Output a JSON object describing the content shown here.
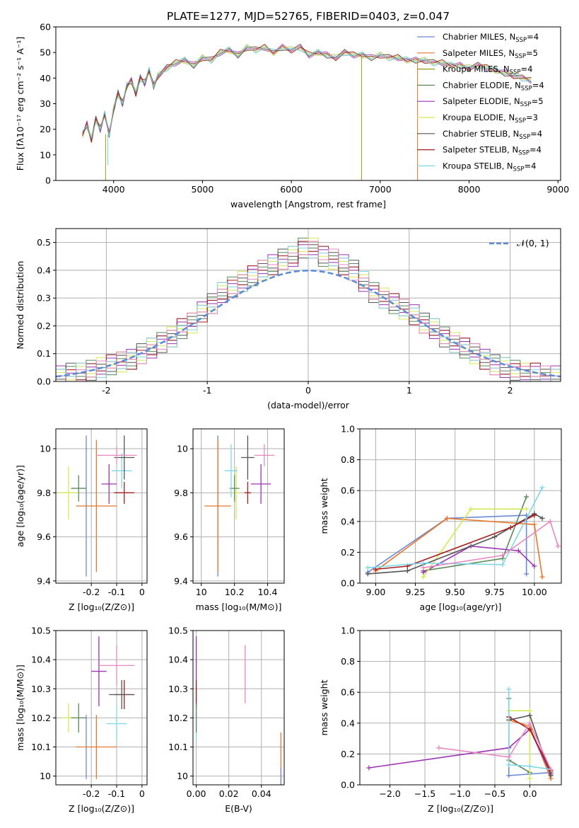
{
  "figure": {
    "title": "PLATE=1277, MJD=52765, FIBERID=0403, z=0.047"
  },
  "legend": {
    "series": [
      {
        "label": "Chabrier MILES, N",
        "sub": "SSP",
        "tail": "=4",
        "color": "#6b88d8"
      },
      {
        "label": "Salpeter MILES, N",
        "sub": "SSP",
        "tail": "=5",
        "color": "#e8772a"
      },
      {
        "label": "Kroupa MILES, N",
        "sub": "SSP",
        "tail": "=4",
        "color": "#9b9b1a"
      },
      {
        "label": "Chabrier ELODIE, N",
        "sub": "SSP",
        "tail": "=4",
        "color": "#5a8a5a"
      },
      {
        "label": "Salpeter ELODIE, N",
        "sub": "SSP",
        "tail": "=5",
        "color": "#9a33b4"
      },
      {
        "label": "Kroupa ELODIE, N",
        "sub": "SSP",
        "tail": "=3",
        "color": "#d4ea52"
      },
      {
        "label": "Chabrier STELIB, N",
        "sub": "SSP",
        "tail": "=4",
        "color": "#555555"
      },
      {
        "label": "Salpeter STELIB, N",
        "sub": "SSP",
        "tail": "=4",
        "color": "#a81e1e"
      },
      {
        "label": "Kroupa STELIB, N",
        "sub": "SSP",
        "tail": "=4",
        "color": "#7ed9e6"
      }
    ]
  },
  "colors": {
    "pink": "#e88ac0",
    "normal_curve": "#5b8ad8",
    "grid": "#b0b0b0"
  },
  "chart_data": [
    {
      "id": "spectrum",
      "type": "line",
      "xlabel": "wavelength [Angstrom, rest frame]",
      "ylabel": "Flux [fλ10⁻¹⁷ erg cm⁻² s⁻¹ A⁻¹]",
      "xlim": [
        3350,
        9030
      ],
      "ylim": [
        0,
        60
      ],
      "xticks": [
        4000,
        5000,
        6000,
        7000,
        8000,
        9000
      ],
      "yticks": [
        0,
        10,
        20,
        30,
        40,
        50,
        60
      ],
      "grid": false,
      "legend_position": "top-right",
      "x": [
        3650,
        3700,
        3750,
        3800,
        3850,
        3900,
        3950,
        4000,
        4050,
        4100,
        4150,
        4200,
        4250,
        4300,
        4350,
        4400,
        4450,
        4500,
        4600,
        4700,
        4800,
        4900,
        5000,
        5100,
        5200,
        5300,
        5400,
        5500,
        5600,
        5700,
        5800,
        5900,
        6000,
        6100,
        6200,
        6300,
        6400,
        6500,
        6600,
        6700,
        6800,
        6900,
        7000,
        7100,
        7200,
        7300,
        7400,
        7500,
        7600,
        7700,
        7800,
        7900,
        8000,
        8100,
        8200,
        8300,
        8400,
        8500,
        8600,
        8700
      ],
      "y": [
        18,
        22,
        16,
        24,
        20,
        26,
        18,
        28,
        34,
        30,
        37,
        39,
        34,
        40,
        38,
        43,
        37,
        41,
        44,
        46,
        47,
        45,
        48,
        47,
        50,
        51,
        49,
        52,
        51,
        52,
        50,
        52,
        51,
        52,
        49,
        50,
        49,
        48,
        50,
        49,
        49,
        48,
        49,
        48,
        48,
        47,
        47,
        47,
        46,
        46,
        45,
        45,
        44,
        45,
        44,
        43,
        42,
        41,
        40,
        39
      ],
      "dropouts": [
        {
          "x": 3910,
          "y": 0,
          "series": "Kroupa MILES"
        },
        {
          "x": 3935,
          "y": 6,
          "series": "Kroupa STELIB"
        },
        {
          "x": 6790,
          "y": 0,
          "series": "Kroupa MILES"
        },
        {
          "x": 7420,
          "y": 0,
          "series": "Salpeter MILES"
        }
      ]
    },
    {
      "id": "residuals",
      "type": "histogram",
      "xlabel": "(data-model)/error",
      "ylabel": "Normed distribution",
      "xlim": [
        -2.5,
        2.5
      ],
      "ylim": [
        0,
        0.55
      ],
      "xticks": [
        -2,
        -1,
        0,
        1,
        2
      ],
      "yticks": [
        0.0,
        0.1,
        0.2,
        0.3,
        0.4,
        0.5
      ],
      "grid": true,
      "reference_curve": "𝒩(0, 1)",
      "legend_position": "top-right",
      "bin_width": 0.1,
      "bin_centers": [
        -2.45,
        -2.35,
        -2.25,
        -2.15,
        -2.05,
        -1.95,
        -1.85,
        -1.75,
        -1.65,
        -1.55,
        -1.45,
        -1.35,
        -1.25,
        -1.15,
        -1.05,
        -0.95,
        -0.85,
        -0.75,
        -0.65,
        -0.55,
        -0.45,
        -0.35,
        -0.25,
        -0.15,
        -0.05,
        0.05,
        0.15,
        0.25,
        0.35,
        0.45,
        0.55,
        0.65,
        0.75,
        0.85,
        0.95,
        1.05,
        1.15,
        1.25,
        1.35,
        1.45,
        1.55,
        1.65,
        1.75,
        1.85,
        1.95,
        2.05,
        2.15,
        2.25,
        2.35,
        2.45
      ],
      "values": [
        0.02,
        0.03,
        0.03,
        0.04,
        0.05,
        0.06,
        0.07,
        0.08,
        0.1,
        0.12,
        0.14,
        0.16,
        0.19,
        0.21,
        0.25,
        0.28,
        0.32,
        0.34,
        0.36,
        0.38,
        0.4,
        0.42,
        0.44,
        0.45,
        0.48,
        0.48,
        0.45,
        0.44,
        0.42,
        0.4,
        0.36,
        0.32,
        0.3,
        0.28,
        0.26,
        0.24,
        0.21,
        0.19,
        0.16,
        0.14,
        0.12,
        0.1,
        0.08,
        0.06,
        0.05,
        0.04,
        0.03,
        0.03,
        0.02,
        0.02
      ]
    },
    {
      "id": "age_vs_Z",
      "type": "scatter",
      "xlabel": "Z [log₁₀(Z/Z⊙)]",
      "ylabel": "age  [log₁₀(age/yr)]",
      "xlim": [
        -0.34,
        0.02
      ],
      "ylim": [
        9.39,
        10.09
      ],
      "xticks": [
        -0.2,
        -0.1,
        0.0
      ],
      "yticks": [
        9.4,
        9.6,
        9.8,
        10.0
      ],
      "grid": true,
      "points": [
        {
          "series": "Chabrier MILES",
          "x": -0.22,
          "y": 9.74,
          "xerr": 0.0,
          "yerr": 0.32
        },
        {
          "series": "Salpeter MILES",
          "x": -0.18,
          "y": 9.74,
          "xerr": 0.08,
          "yerr": 0.3
        },
        {
          "series": "Kroupa ELODIE",
          "x": -0.29,
          "y": 9.8,
          "xerr": 0.04,
          "yerr": 0.12
        },
        {
          "series": "Chabrier ELODIE",
          "x": -0.25,
          "y": 9.82,
          "xerr": 0.03,
          "yerr": 0.06
        },
        {
          "series": "Salpeter ELODIE",
          "x": -0.13,
          "y": 9.84,
          "xerr": 0.03,
          "yerr": 0.09
        },
        {
          "series": "Salpeter STELIB",
          "x": -0.07,
          "y": 9.8,
          "xerr": 0.04,
          "yerr": 0.05
        },
        {
          "series": "Kroupa STELIB",
          "x": -0.08,
          "y": 9.9,
          "xerr": 0.04,
          "yerr": 0.08
        },
        {
          "series": "Chabrier STELIB",
          "x": -0.07,
          "y": 9.96,
          "xerr": 0.04,
          "yerr": 0.1
        },
        {
          "series": "Pink",
          "x": -0.1,
          "y": 9.97,
          "xerr": 0.08,
          "yerr": 0.04
        }
      ]
    },
    {
      "id": "age_vs_mass",
      "type": "scatter",
      "xlabel": "mass [log₁₀(M/M⊙)]",
      "ylabel": "",
      "xlim": [
        9.95,
        10.5
      ],
      "ylim": [
        9.39,
        10.09
      ],
      "xticks": [
        10.0,
        10.2,
        10.4
      ],
      "yticks": [
        9.4,
        9.6,
        9.8,
        10.0
      ],
      "grid": true,
      "points": [
        {
          "series": "Chabrier MILES",
          "x": 10.1,
          "y": 9.74,
          "xerr": 0.0,
          "yerr": 0.32
        },
        {
          "series": "Salpeter MILES",
          "x": 10.1,
          "y": 9.74,
          "xerr": 0.08,
          "yerr": 0.3
        },
        {
          "series": "Kroupa ELODIE",
          "x": 10.21,
          "y": 9.8,
          "xerr": 0.02,
          "yerr": 0.12
        },
        {
          "series": "Chabrier ELODIE",
          "x": 10.2,
          "y": 9.82,
          "xerr": 0.03,
          "yerr": 0.06
        },
        {
          "series": "Salpeter ELODIE",
          "x": 10.36,
          "y": 9.84,
          "xerr": 0.06,
          "yerr": 0.09
        },
        {
          "series": "Salpeter STELIB",
          "x": 10.28,
          "y": 9.8,
          "xerr": 0.02,
          "yerr": 0.05
        },
        {
          "series": "Kroupa STELIB",
          "x": 10.18,
          "y": 9.9,
          "xerr": 0.04,
          "yerr": 0.12
        },
        {
          "series": "Chabrier STELIB",
          "x": 10.28,
          "y": 9.96,
          "xerr": 0.04,
          "yerr": 0.1
        },
        {
          "series": "Pink",
          "x": 10.38,
          "y": 9.97,
          "xerr": 0.06,
          "yerr": 0.05
        }
      ]
    },
    {
      "id": "mass_weight_vs_age",
      "type": "line",
      "xlabel": "age  [log₁₀(age/yr)]",
      "ylabel": "mass weight",
      "xlim": [
        8.9,
        10.17
      ],
      "ylim": [
        0,
        1
      ],
      "xticks": [
        9.0,
        9.25,
        9.5,
        9.75,
        10.0
      ],
      "xtick_labels": [
        "9.00",
        "9.25",
        "9.50",
        "9.75",
        "10.00"
      ],
      "yticks": [
        0.0,
        0.2,
        0.4,
        0.6,
        0.8,
        1.0
      ],
      "grid": true,
      "series": [
        {
          "name": "Chabrier MILES",
          "x": [
            8.95,
            9.45,
            9.95,
            9.95
          ],
          "y": [
            0.07,
            0.42,
            0.44,
            0.06
          ]
        },
        {
          "name": "Salpeter MILES",
          "x": [
            9.0,
            9.45,
            10.0,
            10.05
          ],
          "y": [
            0.08,
            0.42,
            0.38,
            0.04
          ]
        },
        {
          "name": "Chabrier ELODIE",
          "x": [
            9.3,
            9.8,
            9.95
          ],
          "y": [
            0.08,
            0.16,
            0.56
          ]
        },
        {
          "name": "Salpeter ELODIE",
          "x": [
            9.3,
            9.6,
            9.9,
            10.0
          ],
          "y": [
            0.07,
            0.24,
            0.21,
            0.11
          ]
        },
        {
          "name": "Kroupa ELODIE",
          "x": [
            9.3,
            9.6,
            9.95
          ],
          "y": [
            0.04,
            0.48,
            0.48
          ]
        },
        {
          "name": "Chabrier STELIB",
          "x": [
            8.95,
            9.2,
            9.75,
            10.0,
            10.05
          ],
          "y": [
            0.06,
            0.08,
            0.3,
            0.45,
            0.42
          ]
        },
        {
          "name": "Salpeter STELIB",
          "x": [
            9.0,
            9.2,
            9.85,
            10.0
          ],
          "y": [
            0.09,
            0.11,
            0.36,
            0.44
          ]
        },
        {
          "name": "Kroupa STELIB",
          "x": [
            8.95,
            9.3,
            9.8,
            10.05
          ],
          "y": [
            0.1,
            0.13,
            0.12,
            0.62
          ]
        },
        {
          "name": "Pink",
          "x": [
            9.3,
            9.8,
            10.1,
            10.15
          ],
          "y": [
            0.1,
            0.18,
            0.4,
            0.24
          ]
        }
      ]
    },
    {
      "id": "mass_vs_Z",
      "type": "scatter",
      "xlabel": "Z [log₁₀(Z/Z⊙)]",
      "ylabel": "mass [log₁₀(M/M⊙)]",
      "xlim": [
        -0.34,
        0.02
      ],
      "ylim": [
        9.97,
        10.5
      ],
      "xticks": [
        -0.2,
        -0.1,
        0.0
      ],
      "yticks": [
        10.0,
        10.1,
        10.2,
        10.3,
        10.4,
        10.5
      ],
      "grid": true,
      "points": [
        {
          "series": "Chabrier MILES",
          "x": -0.22,
          "y": 10.1,
          "xerr": 0.0,
          "yerr": 0.11
        },
        {
          "series": "Salpeter MILES",
          "x": -0.18,
          "y": 10.1,
          "xerr": 0.08,
          "yerr": 0.11
        },
        {
          "series": "Kroupa ELODIE",
          "x": -0.29,
          "y": 10.2,
          "xerr": 0.03,
          "yerr": 0.05
        },
        {
          "series": "Chabrier ELODIE",
          "x": -0.25,
          "y": 10.2,
          "xerr": 0.03,
          "yerr": 0.05
        },
        {
          "series": "Salpeter ELODIE",
          "x": -0.17,
          "y": 10.36,
          "xerr": 0.03,
          "yerr": 0.12
        },
        {
          "series": "Salpeter STELIB",
          "x": -0.07,
          "y": 10.28,
          "xerr": 0.04,
          "yerr": 0.05
        },
        {
          "series": "Kroupa STELIB",
          "x": -0.1,
          "y": 10.18,
          "xerr": 0.04,
          "yerr": 0.06
        },
        {
          "series": "Chabrier STELIB",
          "x": -0.08,
          "y": 10.28,
          "xerr": 0.05,
          "yerr": 0.05
        },
        {
          "series": "Pink",
          "x": -0.1,
          "y": 10.38,
          "xerr": 0.07,
          "yerr": 0.07
        }
      ]
    },
    {
      "id": "mass_vs_EBV",
      "type": "scatter",
      "xlabel": "E(B-V)",
      "ylabel": "",
      "xlim": [
        -0.002,
        0.054
      ],
      "ylim": [
        9.97,
        10.5
      ],
      "xticks": [
        0.0,
        0.02,
        0.04
      ],
      "xtick_labels": [
        "0.00",
        "0.02",
        "0.04"
      ],
      "yticks": [
        10.0,
        10.1,
        10.2,
        10.3,
        10.4,
        10.5
      ],
      "grid": true,
      "points": [
        {
          "series": "Salpeter ELODIE",
          "x": 0.0,
          "y": 10.36,
          "xerr": 0.0,
          "yerr": 0.12
        },
        {
          "series": "Salpeter STELIB",
          "x": 0.0,
          "y": 10.28,
          "xerr": 0.0,
          "yerr": 0.05
        },
        {
          "series": "Kroupa STELIB",
          "x": 0.0,
          "y": 10.18,
          "xerr": 0.0,
          "yerr": 0.06
        },
        {
          "series": "Chabrier ELODIE",
          "x": 0.0,
          "y": 10.2,
          "xerr": 0.0,
          "yerr": 0.05
        },
        {
          "series": "Pink",
          "x": 0.03,
          "y": 10.35,
          "xerr": 0.0,
          "yerr": 0.1
        },
        {
          "series": "Salpeter MILES",
          "x": 0.052,
          "y": 10.06,
          "xerr": 0.0,
          "yerr": 0.09
        },
        {
          "series": "Chabrier MILES",
          "x": 0.052,
          "y": 10.0,
          "xerr": 0.0,
          "yerr": 0.03
        }
      ]
    },
    {
      "id": "mass_weight_vs_Z",
      "type": "line",
      "xlabel": "Z [log₁₀(Z/Z⊙)]",
      "ylabel": "mass weight",
      "xlim": [
        -2.43,
        0.45
      ],
      "ylim": [
        0,
        1
      ],
      "xticks": [
        -2.0,
        -1.5,
        -1.0,
        -0.5,
        0.0
      ],
      "xtick_labels": [
        "−2.0",
        "−1.5",
        "−1.0",
        "−0.5",
        "0.0"
      ],
      "yticks": [
        0.0,
        0.2,
        0.4,
        0.6,
        0.8,
        1.0
      ],
      "grid": true,
      "series": [
        {
          "name": "Chabrier MILES",
          "x": [
            -0.3,
            -0.3,
            0.0,
            0.3
          ],
          "y": [
            0.44,
            0.06,
            0.07,
            0.08
          ]
        },
        {
          "name": "Salpeter MILES",
          "x": [
            -0.3,
            0.0,
            0.3
          ],
          "y": [
            0.42,
            0.38,
            0.04
          ]
        },
        {
          "name": "Chabrier ELODIE",
          "x": [
            -0.3,
            -0.3,
            0.0
          ],
          "y": [
            0.56,
            0.16,
            0.08
          ]
        },
        {
          "name": "Salpeter ELODIE",
          "x": [
            -2.3,
            -0.3,
            0.0,
            0.3
          ],
          "y": [
            0.11,
            0.24,
            0.36,
            0.07
          ]
        },
        {
          "name": "Kroupa ELODIE",
          "x": [
            -0.3,
            0.0,
            0.0
          ],
          "y": [
            0.48,
            0.48,
            0.04
          ]
        },
        {
          "name": "Chabrier STELIB",
          "x": [
            -0.3,
            0.0,
            0.3
          ],
          "y": [
            0.42,
            0.45,
            0.06
          ]
        },
        {
          "name": "Salpeter STELIB",
          "x": [
            -0.3,
            0.0,
            0.3
          ],
          "y": [
            0.44,
            0.36,
            0.09
          ]
        },
        {
          "name": "Kroupa STELIB",
          "x": [
            -0.3,
            -0.3,
            0.0,
            0.3
          ],
          "y": [
            0.62,
            0.13,
            0.12,
            0.1
          ]
        },
        {
          "name": "Pink",
          "x": [
            -1.3,
            -0.3,
            0.0,
            0.3
          ],
          "y": [
            0.24,
            0.18,
            0.4,
            0.1
          ]
        }
      ]
    }
  ]
}
